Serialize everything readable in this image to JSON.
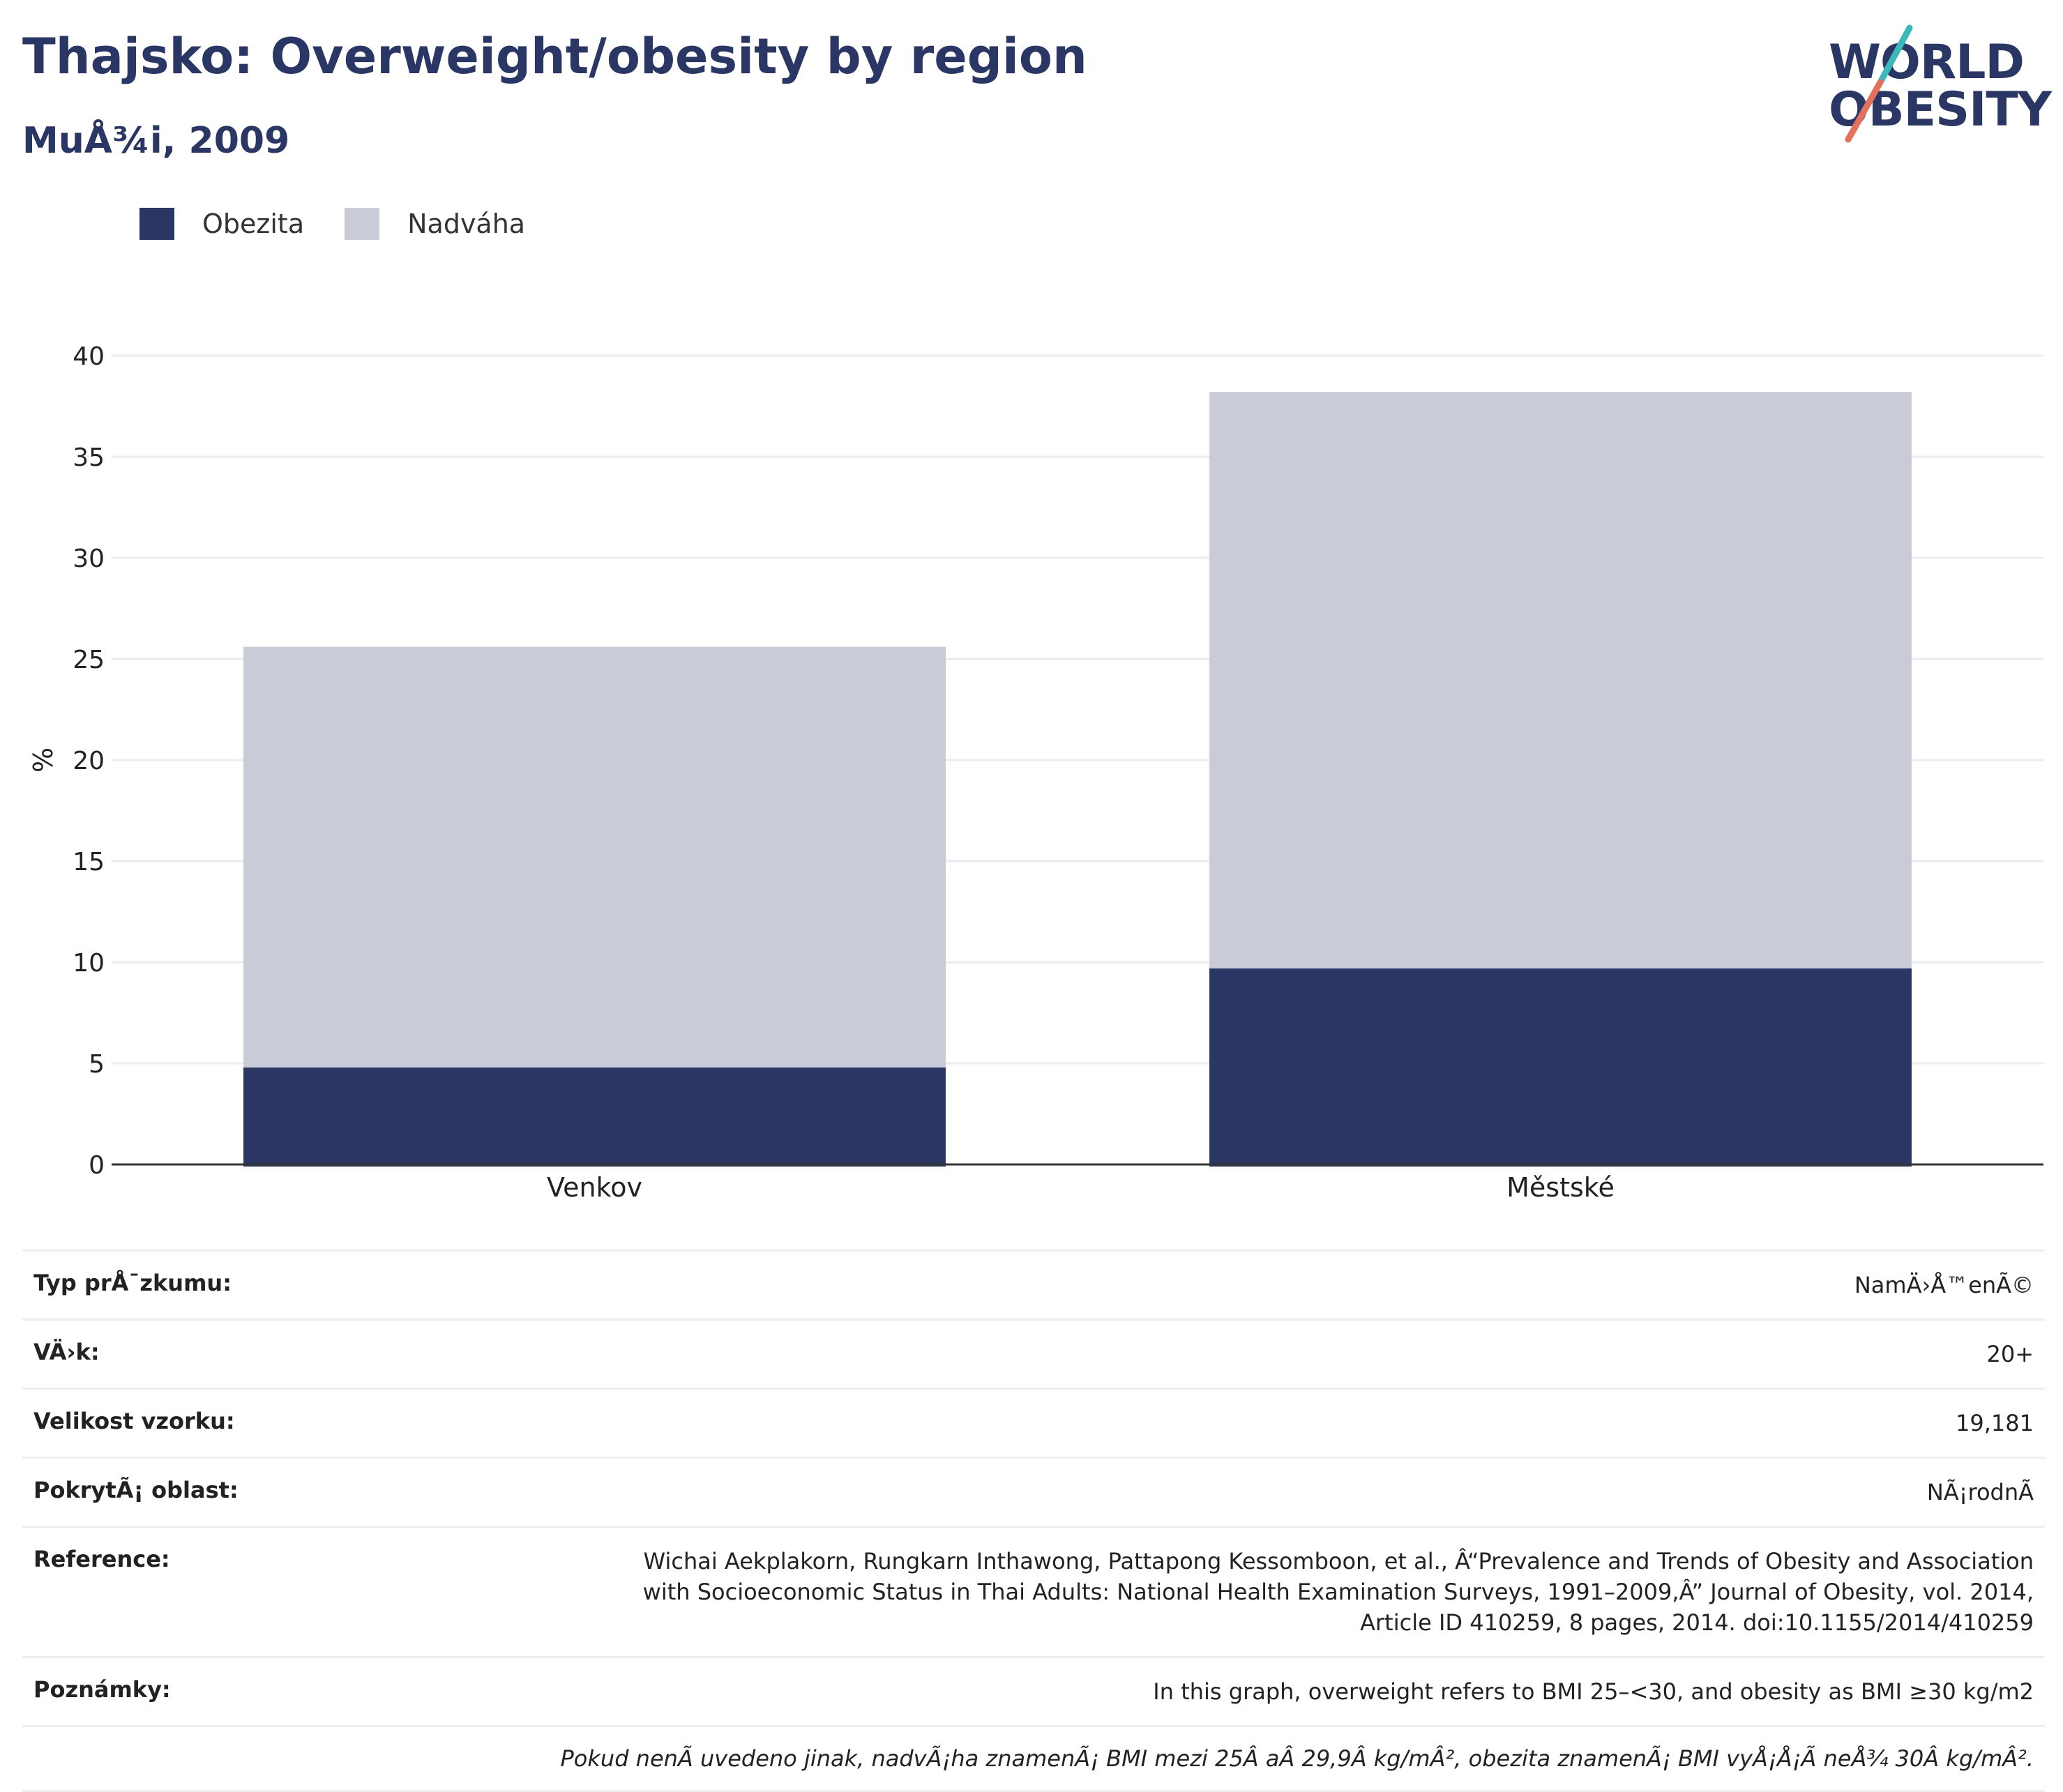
{
  "header": {
    "title": "Thajsko: Overweight/obesity by region",
    "subtitle": "MuÅ¾i, 2009"
  },
  "logo": {
    "line1": "WORLD",
    "line2": "OBESITY"
  },
  "chart_data": {
    "type": "bar",
    "stacked": true,
    "categories": [
      "Venkov",
      "Městské"
    ],
    "series": [
      {
        "name": "Obezita",
        "values": [
          4.8,
          9.7
        ],
        "color": "#2a3765"
      },
      {
        "name": "Nadváha",
        "values": [
          20.8,
          28.5
        ],
        "color": "#c9ccd8"
      }
    ],
    "ylabel": "%",
    "ylim": [
      0,
      40
    ],
    "yticks": [
      0,
      5,
      10,
      15,
      20,
      25,
      30,
      35,
      40
    ],
    "grid": true,
    "legend_position": "top-left"
  },
  "info": {
    "rows": [
      {
        "label": "Typ prÅ¯zkumu:",
        "value": "NamÄ›Å™enÃ©"
      },
      {
        "label": "VÄ›k:",
        "value": "20+"
      },
      {
        "label": "Velikost vzorku:",
        "value": "19,181"
      },
      {
        "label": "PokrytÃ¡ oblast:",
        "value": "NÃ¡rodnÃ"
      },
      {
        "label": "Reference:",
        "value": "Wichai Aekplakorn, Rungkarn Inthawong, Pattapong Kessomboon, et al., Â“Prevalence and Trends of Obesity and Association with Socioeconomic Status in Thai Adults: National Health Examination Surveys, 1991–2009,Â” Journal of Obesity, vol. 2014, Article ID 410259, 8 pages, 2014. doi:10.1155/2014/410259"
      },
      {
        "label": "Poznámky:",
        "value": "In this graph, overweight refers to BMI 25–<30, and obesity as BMI ≥30 kg/m2"
      }
    ],
    "footnote": "Pokud nenÃ uvedeno jinak, nadvÃ¡ha znamenÃ¡ BMI mezi 25Â aÂ 29,9Â kg/mÂ², obezita znamenÃ¡ BMI vyÅ¡Å¡Ã neÅ¾ 30Â kg/mÂ²."
  }
}
